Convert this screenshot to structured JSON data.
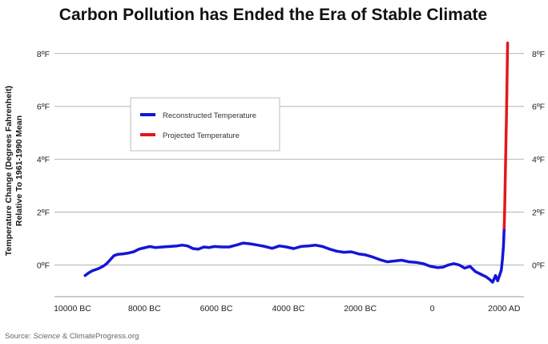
{
  "chart_data": {
    "type": "line",
    "title": "Carbon Pollution has Ended the Era of Stable Climate",
    "ylabel_line1": "Temperature Change (Degrees Fahrenheit)",
    "ylabel_line2": "Relative To 1961-1990 Mean",
    "xlabel": "",
    "xlim": [
      -10500,
      2550
    ],
    "ylim": [
      -1.2,
      8.6
    ],
    "x_ticks": [
      {
        "value": -10000,
        "label": "10000 BC"
      },
      {
        "value": -8000,
        "label": "8000 BC"
      },
      {
        "value": -6000,
        "label": "6000 BC"
      },
      {
        "value": -4000,
        "label": "4000 BC"
      },
      {
        "value": -2000,
        "label": "2000 BC"
      },
      {
        "value": 0,
        "label": "0"
      },
      {
        "value": 2000,
        "label": "2000 AD"
      }
    ],
    "y_ticks": [
      {
        "value": 0,
        "label": "0ºF"
      },
      {
        "value": 2,
        "label": "2ºF"
      },
      {
        "value": 4,
        "label": "4ºF"
      },
      {
        "value": 6,
        "label": "6ºF"
      },
      {
        "value": 8,
        "label": "8ºF"
      }
    ],
    "grid": true,
    "legend_position": "upper-left",
    "series": [
      {
        "name": "Reconstructed Temperature",
        "color": "#1515d6",
        "points": [
          [
            -9650,
            -0.4
          ],
          [
            -9550,
            -0.3
          ],
          [
            -9450,
            -0.22
          ],
          [
            -9300,
            -0.15
          ],
          [
            -9150,
            -0.05
          ],
          [
            -9050,
            0.05
          ],
          [
            -8950,
            0.2
          ],
          [
            -8850,
            0.35
          ],
          [
            -8750,
            0.4
          ],
          [
            -8600,
            0.42
          ],
          [
            -8450,
            0.45
          ],
          [
            -8300,
            0.5
          ],
          [
            -8150,
            0.6
          ],
          [
            -8000,
            0.65
          ],
          [
            -7850,
            0.7
          ],
          [
            -7700,
            0.66
          ],
          [
            -7500,
            0.68
          ],
          [
            -7300,
            0.7
          ],
          [
            -7100,
            0.72
          ],
          [
            -6950,
            0.75
          ],
          [
            -6800,
            0.72
          ],
          [
            -6650,
            0.62
          ],
          [
            -6500,
            0.6
          ],
          [
            -6350,
            0.68
          ],
          [
            -6200,
            0.66
          ],
          [
            -6050,
            0.7
          ],
          [
            -5850,
            0.68
          ],
          [
            -5650,
            0.68
          ],
          [
            -5450,
            0.75
          ],
          [
            -5250,
            0.83
          ],
          [
            -5050,
            0.8
          ],
          [
            -4850,
            0.75
          ],
          [
            -4650,
            0.7
          ],
          [
            -4450,
            0.63
          ],
          [
            -4250,
            0.72
          ],
          [
            -4050,
            0.68
          ],
          [
            -3850,
            0.62
          ],
          [
            -3650,
            0.7
          ],
          [
            -3450,
            0.72
          ],
          [
            -3250,
            0.75
          ],
          [
            -3050,
            0.7
          ],
          [
            -2850,
            0.6
          ],
          [
            -2650,
            0.52
          ],
          [
            -2450,
            0.48
          ],
          [
            -2250,
            0.5
          ],
          [
            -2050,
            0.42
          ],
          [
            -1850,
            0.38
          ],
          [
            -1650,
            0.3
          ],
          [
            -1450,
            0.2
          ],
          [
            -1250,
            0.12
          ],
          [
            -1050,
            0.15
          ],
          [
            -850,
            0.18
          ],
          [
            -650,
            0.12
          ],
          [
            -450,
            0.1
          ],
          [
            -250,
            0.05
          ],
          [
            -50,
            -0.05
          ],
          [
            150,
            -0.1
          ],
          [
            300,
            -0.08
          ],
          [
            450,
            0.0
          ],
          [
            600,
            0.05
          ],
          [
            750,
            0.0
          ],
          [
            900,
            -0.12
          ],
          [
            1050,
            -0.05
          ],
          [
            1200,
            -0.25
          ],
          [
            1350,
            -0.35
          ],
          [
            1500,
            -0.45
          ],
          [
            1600,
            -0.55
          ],
          [
            1680,
            -0.65
          ],
          [
            1760,
            -0.4
          ],
          [
            1820,
            -0.6
          ],
          [
            1870,
            -0.4
          ],
          [
            1920,
            -0.2
          ],
          [
            1950,
            0.2
          ],
          [
            1980,
            0.7
          ],
          [
            2000,
            1.4
          ]
        ]
      },
      {
        "name": "Projected Temperature",
        "color": "#e3171b",
        "points": [
          [
            2000,
            1.4
          ],
          [
            2015,
            2.2
          ],
          [
            2030,
            3.2
          ],
          [
            2045,
            4.3
          ],
          [
            2060,
            5.4
          ],
          [
            2075,
            6.6
          ],
          [
            2085,
            7.5
          ],
          [
            2095,
            8.4
          ]
        ]
      }
    ],
    "source": {
      "prefix": "Source: ",
      "italic": "Science",
      "suffix": " & ClimateProgress.org"
    }
  }
}
